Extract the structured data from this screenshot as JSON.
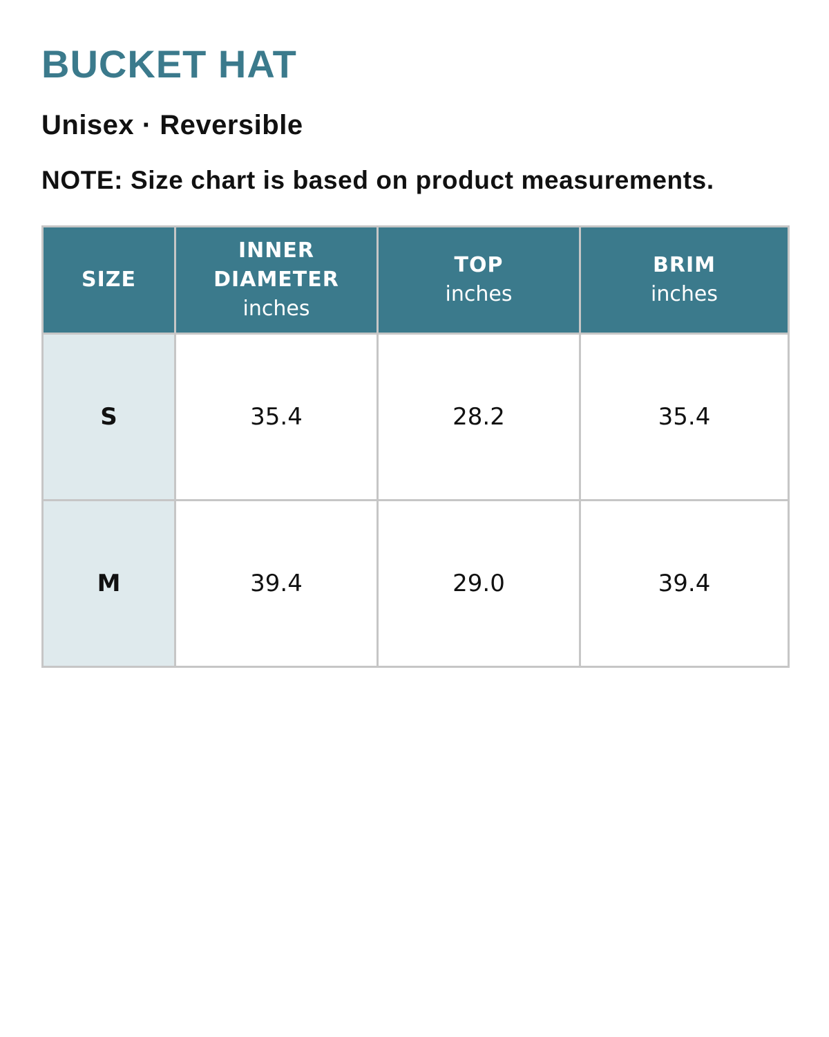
{
  "title": "BUCKET HAT",
  "subtitle": "Unisex · Reversible",
  "note": "NOTE: Size chart is based on product measurements.",
  "colors": {
    "accent": "#3b7a8c",
    "size_column_bg": "#dfeaed",
    "border": "#c6c6c6"
  },
  "table": {
    "headers": [
      {
        "label": "SIZE",
        "unit": ""
      },
      {
        "label": "INNER DIAMETER",
        "unit": "inches"
      },
      {
        "label": "TOP",
        "unit": "inches"
      },
      {
        "label": "BRIM",
        "unit": "inches"
      }
    ],
    "rows": [
      {
        "size": "S",
        "inner_diameter": "35.4",
        "top": "28.2",
        "brim": "35.4"
      },
      {
        "size": "M",
        "inner_diameter": "39.4",
        "top": "29.0",
        "brim": "39.4"
      }
    ]
  }
}
